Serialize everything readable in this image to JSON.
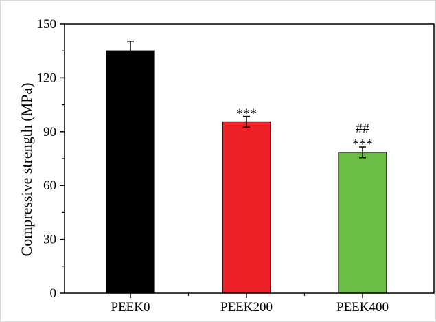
{
  "chart_data": {
    "type": "bar",
    "title": "",
    "xlabel": "",
    "ylabel": "Compressive strength (MPa)",
    "ylim": [
      0,
      150
    ],
    "yticks": [
      0,
      30,
      60,
      90,
      120,
      150
    ],
    "categories": [
      "PEEK0",
      "PEEK200",
      "PEEK400"
    ],
    "values": [
      135,
      95.5,
      78.5
    ],
    "errors": [
      5.5,
      3,
      3
    ],
    "colors": [
      "#000000",
      "#ee2028",
      "#6cbd45"
    ],
    "annotations": [
      [],
      [
        "***"
      ],
      [
        "##",
        "***"
      ]
    ],
    "grid": false,
    "legend": "none"
  }
}
